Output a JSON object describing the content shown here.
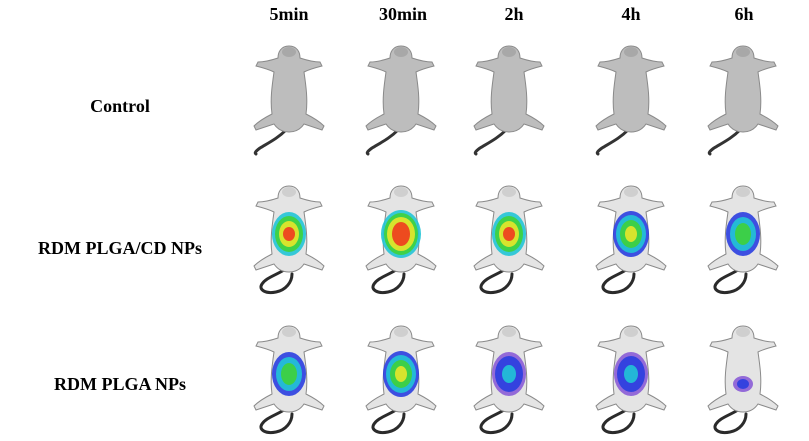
{
  "columns": [
    "5min",
    "30min",
    "2h",
    "4h",
    "6h"
  ],
  "rows": [
    {
      "label": "Control",
      "images": [
        {
          "icon": "mouse-grayscale-image",
          "signal": "none"
        },
        {
          "icon": "mouse-grayscale-image",
          "signal": "none"
        },
        {
          "icon": "mouse-grayscale-image",
          "signal": "none"
        },
        {
          "icon": "mouse-grayscale-image",
          "signal": "none"
        },
        {
          "icon": "mouse-grayscale-image",
          "signal": "none"
        }
      ]
    },
    {
      "label": "RDM PLGA/CD NPs",
      "images": [
        {
          "icon": "mouse-fluorescence-image",
          "signal": "high"
        },
        {
          "icon": "mouse-fluorescence-image",
          "signal": "very-high"
        },
        {
          "icon": "mouse-fluorescence-image",
          "signal": "high"
        },
        {
          "icon": "mouse-fluorescence-image",
          "signal": "medium-high"
        },
        {
          "icon": "mouse-fluorescence-image",
          "signal": "medium"
        }
      ]
    },
    {
      "label": "RDM PLGA NPs",
      "images": [
        {
          "icon": "mouse-fluorescence-image",
          "signal": "medium"
        },
        {
          "icon": "mouse-fluorescence-image",
          "signal": "medium-high"
        },
        {
          "icon": "mouse-fluorescence-image",
          "signal": "low"
        },
        {
          "icon": "mouse-fluorescence-image",
          "signal": "low"
        },
        {
          "icon": "mouse-fluorescence-image",
          "signal": "very-low"
        }
      ]
    }
  ],
  "colors": {
    "background": "#ffffff",
    "text": "#000000",
    "body_gray": "#bdbdbd",
    "heat_blue": "#2a3ee0",
    "heat_cyan": "#21c4d6",
    "heat_green": "#3fd23a",
    "heat_yellow": "#e8e62a",
    "heat_red": "#ef3a1e",
    "heat_purple": "#8a5cd6"
  }
}
